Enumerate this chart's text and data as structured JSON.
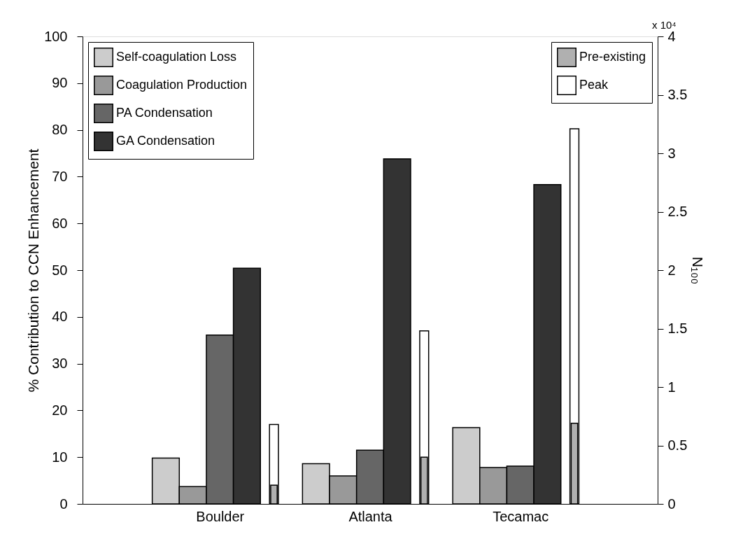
{
  "chart_data": {
    "type": "bar",
    "ylabel": "% Contribution to CCN Enhancement",
    "y2label": "N₁₀₀",
    "categories": [
      "Boulder",
      "Atlanta",
      "Tecamac"
    ],
    "series": [
      {
        "name": "Self-coagulation Loss",
        "color": "#cccccc",
        "values": [
          9.8,
          8.6,
          16.3
        ]
      },
      {
        "name": "Coagulation Production",
        "color": "#999999",
        "values": [
          3.7,
          6.0,
          7.8
        ]
      },
      {
        "name": "PA Condensation",
        "color": "#666666",
        "values": [
          36.1,
          11.5,
          8.1
        ]
      },
      {
        "name": "GA Condensation",
        "color": "#333333",
        "values": [
          50.4,
          73.8,
          68.3
        ]
      },
      {
        "name": "Pre-existing",
        "color": "#b0b0b0",
        "axis": "y2",
        "values": [
          0.16,
          0.4,
          0.69
        ]
      },
      {
        "name": "Peak",
        "color": "#ffffff",
        "axis": "y2",
        "values": [
          0.68,
          1.48,
          3.21
        ]
      }
    ],
    "ylim": [
      0,
      100
    ],
    "yticks": [
      0,
      10,
      20,
      30,
      40,
      50,
      60,
      70,
      80,
      90,
      100
    ],
    "y2lim": [
      0,
      4
    ],
    "y2ticks": [
      0,
      0.5,
      1,
      1.5,
      2,
      2.5,
      3,
      3.5,
      4
    ],
    "annotations": [
      "x 10⁴"
    ],
    "legend": "top left",
    "grid": false
  }
}
